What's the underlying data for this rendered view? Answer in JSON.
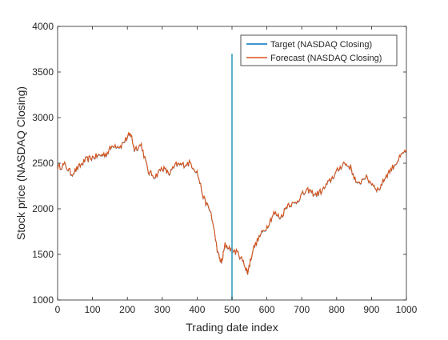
{
  "chart_data": {
    "type": "line",
    "xlabel": "Trading date index",
    "ylabel": "Stock price (NASDAQ Closing)",
    "xlim": [
      0,
      1000
    ],
    "ylim": [
      1000,
      4000
    ],
    "xticks": [
      0,
      100,
      200,
      300,
      400,
      500,
      600,
      700,
      800,
      900,
      1000
    ],
    "yticks": [
      1000,
      1500,
      2000,
      2500,
      3000,
      3500,
      4000
    ],
    "grid": false,
    "legend_position": "top-right",
    "series": [
      {
        "name": "Target (NASDAQ Closing)",
        "color": "#0072BD",
        "style": "line",
        "x": [
          0,
          20,
          40,
          60,
          80,
          100,
          120,
          140,
          160,
          180,
          200,
          210,
          220,
          240,
          260,
          280,
          300,
          320,
          340,
          360,
          380,
          400,
          420,
          440,
          460,
          470,
          480,
          500,
          520,
          540,
          545,
          560,
          580,
          600,
          620,
          640,
          660,
          680,
          700,
          720,
          740,
          760,
          780,
          800,
          820,
          840,
          860,
          880,
          900,
          920,
          940,
          960,
          980,
          1000
        ],
        "y": [
          2450,
          2480,
          2380,
          2450,
          2530,
          2560,
          2580,
          2600,
          2700,
          2680,
          2780,
          2820,
          2650,
          2700,
          2400,
          2350,
          2450,
          2380,
          2480,
          2480,
          2500,
          2400,
          2100,
          1950,
          1500,
          1400,
          1600,
          1550,
          1500,
          1350,
          1300,
          1550,
          1700,
          1800,
          1950,
          1900,
          2050,
          2050,
          2150,
          2200,
          2150,
          2200,
          2300,
          2400,
          2500,
          2450,
          2250,
          2350,
          2280,
          2200,
          2350,
          2450,
          2550,
          2650
        ]
      },
      {
        "name": "Forecast (NASDAQ Closing)",
        "color": "#D95319",
        "style": "line",
        "x": [
          0,
          20,
          40,
          60,
          80,
          100,
          120,
          140,
          160,
          180,
          200,
          210,
          220,
          240,
          260,
          280,
          300,
          320,
          340,
          360,
          380,
          400,
          420,
          440,
          460,
          470,
          480,
          500,
          520,
          540,
          545,
          560,
          580,
          600,
          620,
          640,
          660,
          680,
          700,
          720,
          740,
          760,
          780,
          800,
          820,
          840,
          860,
          880,
          900,
          920,
          940,
          960,
          980,
          1000
        ],
        "y": [
          2450,
          2480,
          2380,
          2450,
          2530,
          2560,
          2580,
          2600,
          2700,
          2680,
          2780,
          2820,
          2650,
          2700,
          2400,
          2350,
          2450,
          2380,
          2480,
          2480,
          2500,
          2400,
          2100,
          1950,
          1500,
          1400,
          1600,
          1550,
          1500,
          1350,
          1300,
          1550,
          1700,
          1800,
          1950,
          1900,
          2050,
          2050,
          2150,
          2200,
          2150,
          2200,
          2300,
          2400,
          2500,
          2450,
          2250,
          2350,
          2280,
          2200,
          2350,
          2450,
          2550,
          2650
        ]
      }
    ],
    "annotations": [
      {
        "type": "vertical-line",
        "x": 500,
        "y_from": 1000,
        "y_to": 3700,
        "color": "#4DA6C7"
      }
    ]
  }
}
